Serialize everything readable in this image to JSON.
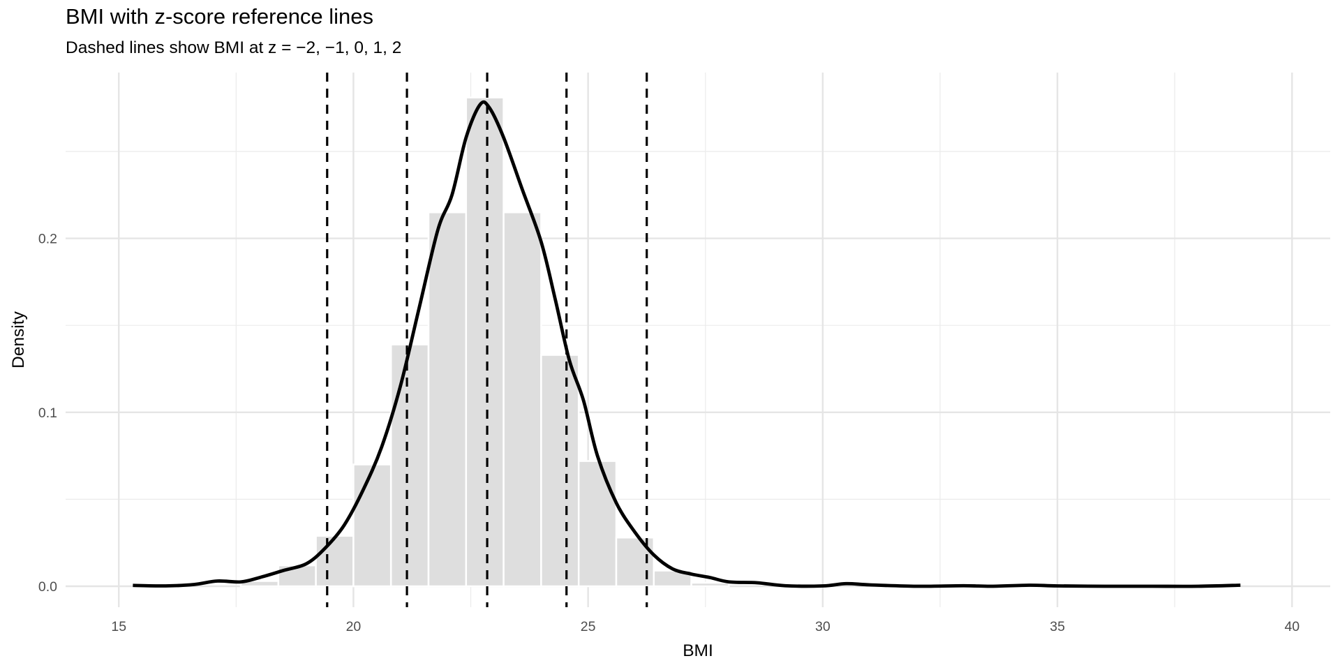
{
  "chart_data": {
    "type": "bar",
    "title": "BMI with z-score reference lines",
    "subtitle": "Dashed lines show BMI at z = −2, −1, 0, 1, 2",
    "xlabel": "BMI",
    "ylabel": "Density",
    "xlim": [
      14,
      41
    ],
    "ylim": [
      0,
      0.29
    ],
    "x_ticks": [
      15,
      20,
      25,
      30,
      35,
      40
    ],
    "x_tick_labels": [
      "15",
      "20",
      "25",
      "30",
      "35",
      "40"
    ],
    "y_ticks": [
      0.0,
      0.1,
      0.2
    ],
    "y_tick_labels": [
      "0.0",
      "0.1",
      "0.2"
    ],
    "grid": true,
    "legend": "none",
    "histogram": {
      "bin_width": 0.8,
      "bins": [
        {
          "x0": 17.6,
          "x1": 18.4,
          "density": 0.003
        },
        {
          "x0": 18.4,
          "x1": 19.2,
          "density": 0.012
        },
        {
          "x0": 19.2,
          "x1": 20.0,
          "density": 0.029
        },
        {
          "x0": 20.0,
          "x1": 20.8,
          "density": 0.07
        },
        {
          "x0": 20.8,
          "x1": 21.6,
          "density": 0.139
        },
        {
          "x0": 21.6,
          "x1": 22.4,
          "density": 0.215
        },
        {
          "x0": 22.4,
          "x1": 23.2,
          "density": 0.281
        },
        {
          "x0": 23.2,
          "x1": 24.0,
          "density": 0.215
        },
        {
          "x0": 24.0,
          "x1": 24.8,
          "density": 0.133
        },
        {
          "x0": 24.8,
          "x1": 25.6,
          "density": 0.072
        },
        {
          "x0": 25.6,
          "x1": 26.4,
          "density": 0.028
        },
        {
          "x0": 26.4,
          "x1": 27.2,
          "density": 0.009
        },
        {
          "x0": 27.2,
          "x1": 28.0,
          "density": 0.002
        }
      ],
      "fill": "#dedede",
      "stroke": "#ffffff"
    },
    "density_curve": {
      "color": "#000000",
      "points": [
        [
          15.3,
          0.0005
        ],
        [
          16.0,
          0.0002
        ],
        [
          16.6,
          0.001
        ],
        [
          17.1,
          0.003
        ],
        [
          17.6,
          0.0025
        ],
        [
          18.0,
          0.005
        ],
        [
          18.5,
          0.009
        ],
        [
          19.0,
          0.013
        ],
        [
          19.4,
          0.022
        ],
        [
          19.8,
          0.035
        ],
        [
          20.2,
          0.055
        ],
        [
          20.6,
          0.08
        ],
        [
          21.0,
          0.115
        ],
        [
          21.4,
          0.16
        ],
        [
          21.8,
          0.205
        ],
        [
          22.1,
          0.225
        ],
        [
          22.4,
          0.258
        ],
        [
          22.7,
          0.277
        ],
        [
          22.9,
          0.275
        ],
        [
          23.2,
          0.258
        ],
        [
          23.6,
          0.228
        ],
        [
          24.0,
          0.198
        ],
        [
          24.3,
          0.165
        ],
        [
          24.6,
          0.13
        ],
        [
          24.9,
          0.107
        ],
        [
          25.2,
          0.075
        ],
        [
          25.6,
          0.048
        ],
        [
          26.0,
          0.031
        ],
        [
          26.4,
          0.018
        ],
        [
          26.8,
          0.01
        ],
        [
          27.2,
          0.007
        ],
        [
          27.6,
          0.005
        ],
        [
          28.0,
          0.0025
        ],
        [
          28.6,
          0.002
        ],
        [
          29.2,
          0.0003
        ],
        [
          30.0,
          0.0002
        ],
        [
          30.5,
          0.0015
        ],
        [
          31.0,
          0.0008
        ],
        [
          32.0,
          0.0
        ],
        [
          33.0,
          0.0003
        ],
        [
          33.6,
          0.0
        ],
        [
          34.4,
          0.0006
        ],
        [
          35.0,
          0.0002
        ],
        [
          36.0,
          0.0
        ],
        [
          37.0,
          0.0
        ],
        [
          38.0,
          0.0
        ],
        [
          38.9,
          0.0006
        ]
      ]
    },
    "reference_lines": {
      "style": "dashed",
      "color": "#000000",
      "lines": [
        {
          "z": -2,
          "bmi": 19.44
        },
        {
          "z": -1,
          "bmi": 21.14
        },
        {
          "z": 0,
          "bmi": 22.85
        },
        {
          "z": 1,
          "bmi": 24.54
        },
        {
          "z": 2,
          "bmi": 26.25
        }
      ]
    }
  }
}
